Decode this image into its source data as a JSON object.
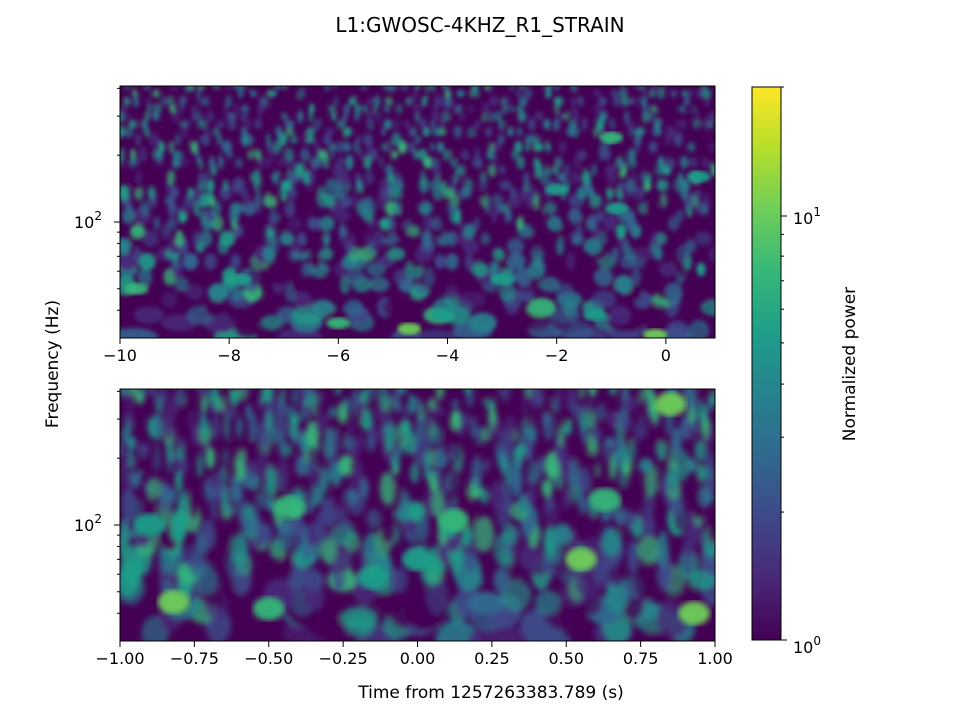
{
  "figure": {
    "title": "L1:GWOSC-4KHZ_R1_STRAIN",
    "ylabel": "Frequency (Hz)",
    "xlabel": "Time from 1257263383.789 (s)"
  },
  "chart_data": [
    {
      "type": "heatmap",
      "name": "top-panel",
      "yscale": "log",
      "xlim": [
        -10,
        0.9
      ],
      "ylim": [
        30,
        410
      ],
      "xticks": [
        -10,
        -8,
        -6,
        -4,
        -2,
        0
      ],
      "xtick_labels": [
        "−10",
        "−8",
        "−6",
        "−4",
        "−2",
        "0"
      ],
      "yticks": [
        100
      ],
      "ytick_labels": [
        "10^2"
      ],
      "blobs": [
        {
          "x": -9.7,
          "f": 50,
          "v": 7
        },
        {
          "x": -7.8,
          "f": 55,
          "v": 6
        },
        {
          "x": -6.0,
          "f": 35,
          "v": 8
        },
        {
          "x": -4.7,
          "f": 33,
          "v": 9
        },
        {
          "x": -4.1,
          "f": 38,
          "v": 6
        },
        {
          "x": -3.0,
          "f": 55,
          "v": 5
        },
        {
          "x": -1.3,
          "f": 38,
          "v": 5
        },
        {
          "x": -0.2,
          "f": 31,
          "v": 10
        },
        {
          "x": -2.0,
          "f": 140,
          "v": 6
        },
        {
          "x": -1.0,
          "f": 240,
          "v": 7
        },
        {
          "x": -0.9,
          "f": 115,
          "v": 6
        },
        {
          "x": 0.6,
          "f": 160,
          "v": 6
        }
      ]
    },
    {
      "type": "heatmap",
      "name": "bottom-panel",
      "yscale": "log",
      "xlim": [
        -1,
        1
      ],
      "ylim": [
        30,
        410
      ],
      "xticks": [
        -1.0,
        -0.75,
        -0.5,
        -0.25,
        0.0,
        0.25,
        0.5,
        0.75,
        1.0
      ],
      "xtick_labels": [
        "−1.00",
        "−0.75",
        "−0.50",
        "−0.25",
        "0.00",
        "0.25",
        "0.50",
        "0.75",
        "1.00"
      ],
      "yticks": [
        100
      ],
      "ytick_labels": [
        "10^2"
      ],
      "blobs": [
        {
          "x": -0.82,
          "f": 45,
          "v": 11
        },
        {
          "x": -0.5,
          "f": 42,
          "v": 7
        },
        {
          "x": -0.43,
          "f": 120,
          "v": 8
        },
        {
          "x": -0.9,
          "f": 100,
          "v": 6
        },
        {
          "x": 0.0,
          "f": 70,
          "v": 6
        },
        {
          "x": 0.12,
          "f": 105,
          "v": 8
        },
        {
          "x": 0.55,
          "f": 70,
          "v": 10
        },
        {
          "x": 0.63,
          "f": 130,
          "v": 8
        },
        {
          "x": 0.93,
          "f": 40,
          "v": 10
        },
        {
          "x": -0.15,
          "f": 58,
          "v": 5
        },
        {
          "x": 0.85,
          "f": 350,
          "v": 9
        }
      ]
    }
  ],
  "colorbar": {
    "label": "Normalized power",
    "scale": "log",
    "range": [
      1,
      20
    ],
    "tick_labels": [
      {
        "base": "10",
        "exp": "1"
      },
      {
        "base": "10",
        "exp": "0"
      }
    ],
    "colormap": [
      "#440154",
      "#482878",
      "#3e4989",
      "#31688e",
      "#26828e",
      "#1f9e89",
      "#35b779",
      "#6ece58",
      "#b5de2b",
      "#fde725"
    ]
  }
}
